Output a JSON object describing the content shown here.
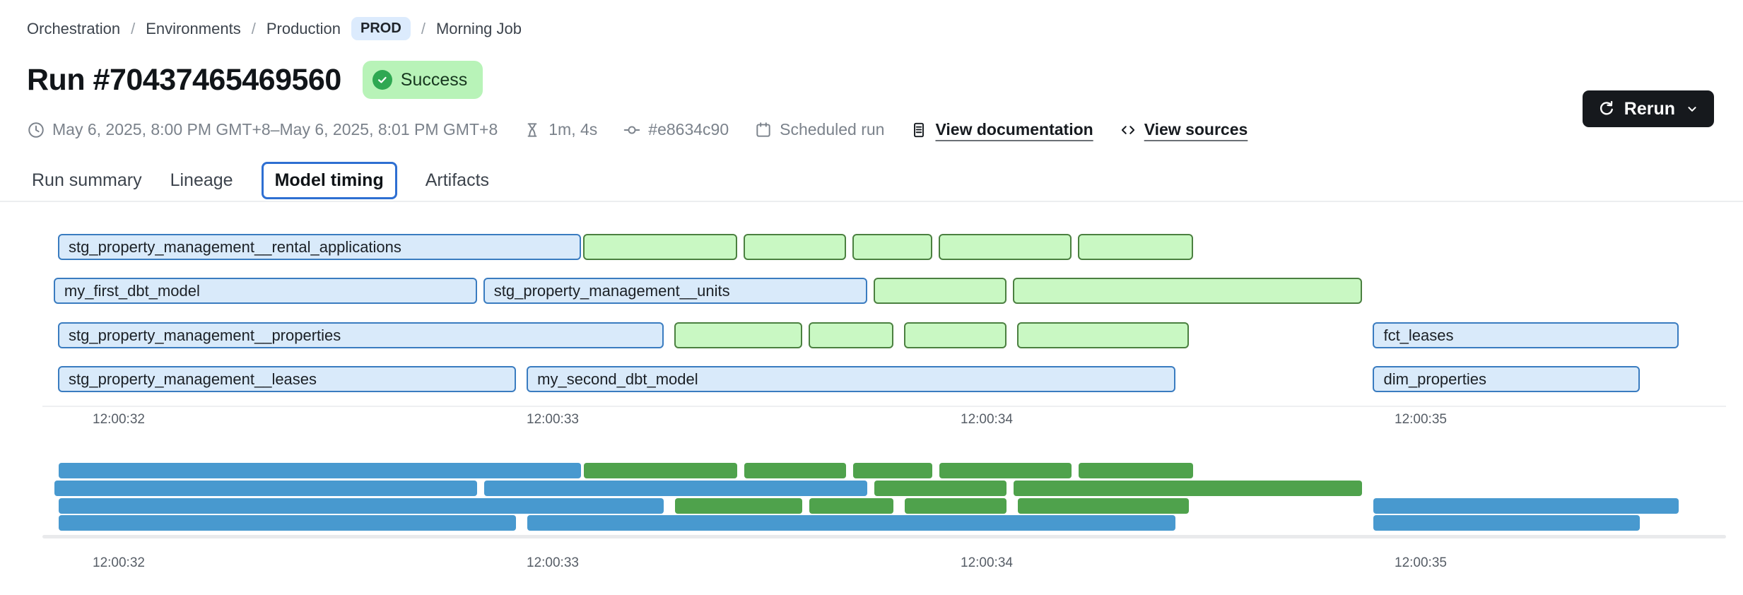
{
  "breadcrumb": {
    "orchestration": "Orchestration",
    "environments": "Environments",
    "production": "Production",
    "env_badge": "PROD",
    "job": "Morning Job",
    "separator": "/"
  },
  "header": {
    "title": "Run #70437465469560",
    "status": "Success"
  },
  "meta": {
    "time_range": "May 6, 2025, 8:00 PM GMT+8–May 6, 2025, 8:01 PM GMT+8",
    "duration": "1m, 4s",
    "commit": "#e8634c90",
    "trigger": "Scheduled run",
    "view_documentation": "View documentation",
    "view_sources": "View sources"
  },
  "actions": {
    "rerun_label": "Rerun"
  },
  "tabs": [
    {
      "label": "Run summary",
      "active": false
    },
    {
      "label": "Lineage",
      "active": false
    },
    {
      "label": "Model timing",
      "active": true
    },
    {
      "label": "Artifacts",
      "active": false
    }
  ],
  "colors": {
    "env_badge_bg": "#dcebfd",
    "env_badge_text": "#1f242a",
    "status_success_bg": "#b8f3b8",
    "status_success_icon": "#2fa852",
    "status_success_text": "#17371f",
    "tab_active_border": "#2e6fd2",
    "rerun_bg": "#16191d"
  },
  "chart_data": {
    "type": "gantt",
    "title": "Model timing",
    "x_ticks": {
      "labels": [
        "12:00:32",
        "12:00:33",
        "12:00:34",
        "12:00:35"
      ],
      "seconds": [
        0,
        1,
        2,
        3
      ]
    },
    "legend": "seconds are offsets from the 12:00:32 tick; blue = model bars with visible labels, green = unlabeled bars",
    "colors": {
      "gantt_blue_fill": "#d9eafa",
      "gantt_blue_border": "#3a7cc0",
      "gantt_green_fill": "#c9f8c3",
      "gantt_green_border": "#4b8040",
      "mini_blue": "#4899cf",
      "mini_green": "#4fa24c"
    },
    "rows": [
      {
        "bars": [
          {
            "color": "blue",
            "label": "stg_property_management__rental_applications",
            "start": -0.14,
            "end": 1.07
          },
          {
            "color": "green",
            "label": "",
            "start": 1.07,
            "end": 1.43
          },
          {
            "color": "green",
            "label": "",
            "start": 1.44,
            "end": 1.68
          },
          {
            "color": "green",
            "label": "",
            "start": 1.69,
            "end": 1.88
          },
          {
            "color": "green",
            "label": "",
            "start": 1.89,
            "end": 2.2
          },
          {
            "color": "green",
            "label": "",
            "start": 2.21,
            "end": 2.48
          }
        ]
      },
      {
        "bars": [
          {
            "color": "blue",
            "label": "my_first_dbt_model",
            "start": -0.15,
            "end": 0.83
          },
          {
            "color": "blue",
            "label": "stg_property_management__units",
            "start": 0.84,
            "end": 1.73
          },
          {
            "color": "green",
            "label": "",
            "start": 1.74,
            "end": 2.05
          },
          {
            "color": "green",
            "label": "",
            "start": 2.06,
            "end": 2.87
          }
        ]
      },
      {
        "bars": [
          {
            "color": "blue",
            "label": "stg_property_management__properties",
            "start": -0.14,
            "end": 1.26
          },
          {
            "color": "green",
            "label": "",
            "start": 1.28,
            "end": 1.58
          },
          {
            "color": "green",
            "label": "",
            "start": 1.59,
            "end": 1.79
          },
          {
            "color": "green",
            "label": "",
            "start": 1.81,
            "end": 2.05
          },
          {
            "color": "green",
            "label": "",
            "start": 2.07,
            "end": 2.47
          },
          {
            "color": "blue",
            "label": "fct_leases",
            "start": 2.89,
            "end": 3.6
          }
        ]
      },
      {
        "bars": [
          {
            "color": "blue",
            "label": "stg_property_management__leases",
            "start": -0.14,
            "end": 0.92
          },
          {
            "color": "blue",
            "label": "my_second_dbt_model",
            "start": 0.94,
            "end": 2.44
          },
          {
            "color": "blue",
            "label": "dim_properties",
            "start": 2.89,
            "end": 3.51
          }
        ]
      }
    ]
  }
}
